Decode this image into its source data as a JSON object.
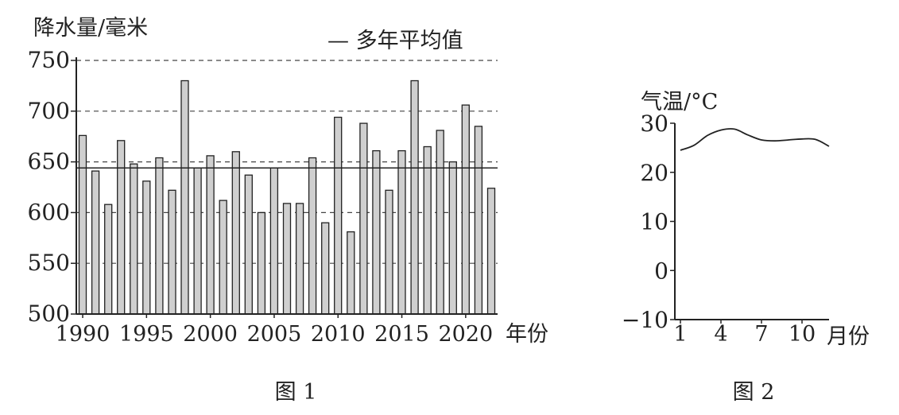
{
  "chart_data": [
    {
      "type": "bar",
      "figure_label": "图 1",
      "ylabel": "降水量/毫米",
      "xlabel": "年份",
      "legend": {
        "label": "— 多年平均值",
        "placement": "top-right"
      },
      "mean_value": 644,
      "ylim": [
        500,
        750
      ],
      "yticks": [
        500,
        550,
        600,
        650,
        700,
        750
      ],
      "xtick_labels": [
        "1990",
        "1995",
        "2000",
        "2005",
        "2010",
        "2015",
        "2020"
      ],
      "grid": "dashed horizontal at y ticks",
      "categories": [
        1990,
        1991,
        1992,
        1993,
        1994,
        1995,
        1996,
        1997,
        1998,
        1999,
        2000,
        2001,
        2002,
        2003,
        2004,
        2005,
        2006,
        2007,
        2008,
        2009,
        2010,
        2011,
        2012,
        2013,
        2014,
        2015,
        2016,
        2017,
        2018,
        2019,
        2020,
        2021,
        2022
      ],
      "values": [
        676,
        641,
        608,
        671,
        648,
        631,
        654,
        622,
        730,
        644,
        656,
        612,
        660,
        637,
        600,
        644,
        609,
        609,
        654,
        590,
        694,
        581,
        688,
        661,
        622,
        661,
        730,
        665,
        681,
        650,
        706,
        685,
        624
      ]
    },
    {
      "type": "line",
      "figure_label": "图 2",
      "ylabel": "气温/°C",
      "xlabel": "月份",
      "xlim": [
        1,
        12
      ],
      "ylim": [
        -10,
        30
      ],
      "xticks": [
        1,
        4,
        7,
        10
      ],
      "yticks": [
        -10,
        0,
        10,
        20,
        30
      ],
      "x": [
        1,
        2,
        3,
        4,
        5,
        6,
        7,
        8,
        9,
        10,
        11,
        12
      ],
      "values": [
        24.5,
        25.5,
        27.5,
        28.6,
        28.8,
        27.6,
        26.6,
        26.4,
        26.6,
        26.8,
        26.7,
        25.3
      ]
    }
  ]
}
